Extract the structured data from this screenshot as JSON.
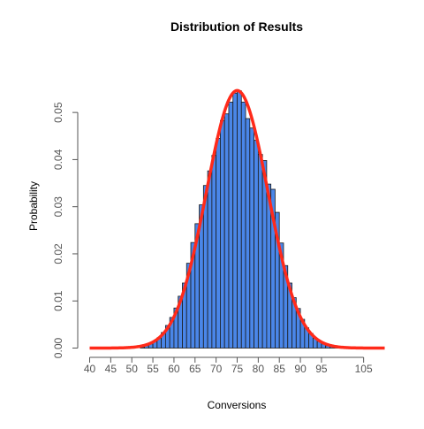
{
  "chart_data": {
    "type": "bar",
    "title": "Distribution of Results",
    "xlabel": "Conversions",
    "ylabel": "Probability",
    "xlim": [
      40,
      110
    ],
    "ylim": [
      0,
      0.055
    ],
    "x_ticks": [
      "40",
      "45",
      "50",
      "55",
      "60",
      "65",
      "70",
      "75",
      "80",
      "85",
      "90",
      "95",
      "105"
    ],
    "y_ticks": [
      "0.00",
      "0.01",
      "0.02",
      "0.03",
      "0.04",
      "0.05"
    ],
    "grid": false,
    "legend": "none",
    "bar_color": "#4a86e8",
    "bar_edge_color": "#1a1a1a",
    "curve_color": "#ff2a1a",
    "histogram": {
      "bin_width": 1,
      "bin_starts": [
        52,
        53,
        54,
        55,
        56,
        57,
        58,
        59,
        60,
        61,
        62,
        63,
        64,
        65,
        66,
        67,
        68,
        69,
        70,
        71,
        72,
        73,
        74,
        75,
        76,
        77,
        78,
        79,
        80,
        81,
        82,
        83,
        84,
        85,
        86,
        87,
        88,
        89,
        90,
        91,
        92,
        93,
        94,
        95,
        96,
        97,
        98,
        99
      ],
      "values": [
        0.0002,
        0.0005,
        0.0009,
        0.0014,
        0.0022,
        0.0033,
        0.0048,
        0.0065,
        0.0085,
        0.011,
        0.0138,
        0.018,
        0.0224,
        0.0264,
        0.0304,
        0.0345,
        0.0376,
        0.0409,
        0.0445,
        0.0483,
        0.0497,
        0.0522,
        0.0541,
        0.0546,
        0.0522,
        0.0487,
        0.0467,
        0.0441,
        0.0411,
        0.0398,
        0.0348,
        0.0337,
        0.0288,
        0.0223,
        0.0175,
        0.0138,
        0.0107,
        0.0084,
        0.0061,
        0.0043,
        0.0031,
        0.0021,
        0.0014,
        0.0009,
        0.0005,
        0.0003,
        0.0002,
        0.0001
      ]
    },
    "fit_curve": {
      "name": "",
      "mean": 75,
      "sd": 7.3,
      "x_range": [
        40,
        110
      ]
    }
  }
}
